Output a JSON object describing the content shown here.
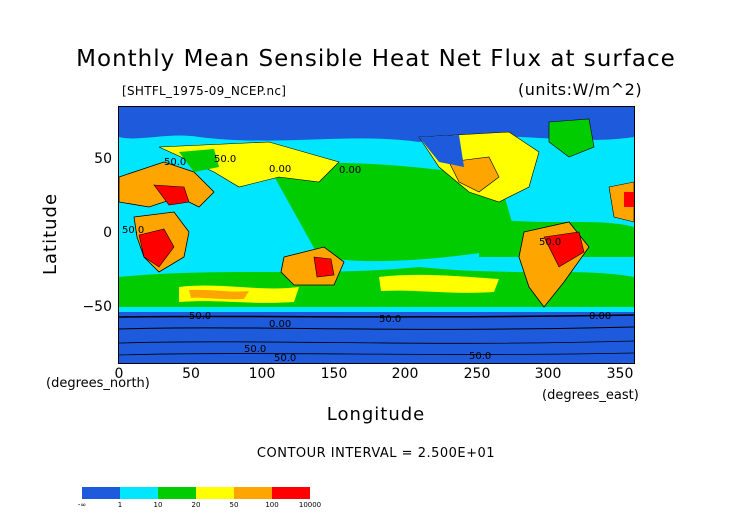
{
  "title": "Monthly Mean Sensible Heat Net Flux at surface",
  "filename": "[SHTFL_1975-09_NCEP.nc]",
  "units": "(units:W/m^2)",
  "y_axis": {
    "label": "Latitude",
    "unit_note": "(degrees_north)",
    "ticks": [
      "50",
      "0",
      "−50"
    ]
  },
  "x_axis": {
    "label": "Longitude",
    "unit_note": "(degrees_east)",
    "ticks": [
      "0",
      "50",
      "100",
      "150",
      "200",
      "250",
      "300",
      "350"
    ]
  },
  "contour_interval": "CONTOUR INTERVAL = 2.500E+01",
  "map_contour_labels": [
    "50.0",
    "50.0",
    "0.00",
    "50.0",
    "0.00",
    "50.0",
    "50.0",
    "0.00",
    "50.0",
    "50.0",
    "50.0",
    "50.0",
    "0.00"
  ],
  "colorbar": {
    "labels": [
      "-∞",
      "1",
      "10",
      "20",
      "50",
      "100",
      "10000"
    ],
    "colors": [
      "#1e5adc",
      "#00e6ff",
      "#00cc00",
      "#ffff00",
      "#ffa500",
      "#ff0000"
    ]
  },
  "palette": {
    "ocean_low": "#1e5adc",
    "ocean_mid": "#00e6ff",
    "mid": "#00cc00",
    "warm": "#ffff00",
    "hot": "#ffa500",
    "max": "#ff0000"
  }
}
